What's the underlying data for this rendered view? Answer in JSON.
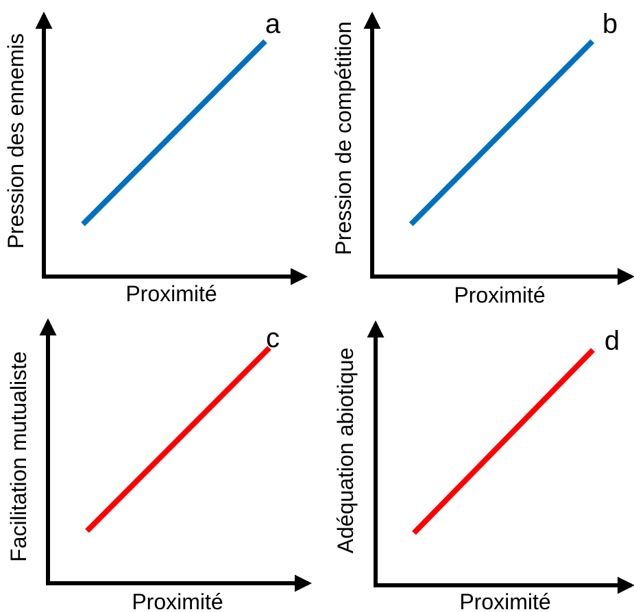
{
  "chart_data": [
    {
      "type": "line",
      "panel": "a",
      "xlabel": "Proximité",
      "ylabel": "Pression des ennemis",
      "color": "#0070c0",
      "series": [
        {
          "x": [
            0.15,
            0.85
          ],
          "y": [
            0.2,
            0.9
          ]
        }
      ],
      "xlim": [
        0,
        1
      ],
      "ylim": [
        0,
        1
      ],
      "grid": false
    },
    {
      "type": "line",
      "panel": "b",
      "xlabel": "Proximité",
      "ylabel": "Pression de compétition",
      "color": "#0070c0",
      "series": [
        {
          "x": [
            0.15,
            0.85
          ],
          "y": [
            0.2,
            0.9
          ]
        }
      ],
      "xlim": [
        0,
        1
      ],
      "ylim": [
        0,
        1
      ],
      "grid": false
    },
    {
      "type": "line",
      "panel": "c",
      "xlabel": "Proximité",
      "ylabel": "Facilitation mutualiste",
      "color": "#ff0000",
      "series": [
        {
          "x": [
            0.15,
            0.85
          ],
          "y": [
            0.2,
            0.9
          ]
        }
      ],
      "xlim": [
        0,
        1
      ],
      "ylim": [
        0,
        1
      ],
      "grid": false
    },
    {
      "type": "line",
      "panel": "d",
      "xlabel": "Proximité",
      "ylabel": "Adéquation abiotique",
      "color": "#ff0000",
      "series": [
        {
          "x": [
            0.15,
            0.85
          ],
          "y": [
            0.2,
            0.9
          ]
        }
      ],
      "xlim": [
        0,
        1
      ],
      "ylim": [
        0,
        1
      ],
      "grid": false
    }
  ]
}
